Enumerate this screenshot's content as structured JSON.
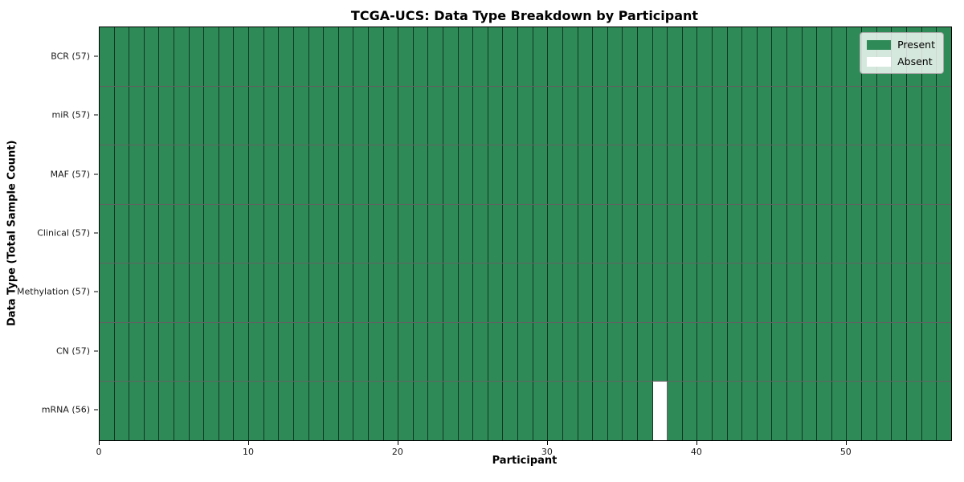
{
  "chart_data": {
    "type": "heatmap",
    "title": "TCGA-UCS: Data Type Breakdown by Participant",
    "xlabel": "Participant",
    "ylabel": "Data Type (Total Sample Count)",
    "n_participants": 57,
    "x_ticks": [
      0,
      10,
      20,
      30,
      40,
      50
    ],
    "rows": [
      {
        "label": "BCR (57)",
        "data_type": "BCR",
        "total": 57,
        "absent_participants": []
      },
      {
        "label": "miR (57)",
        "data_type": "miR",
        "total": 57,
        "absent_participants": []
      },
      {
        "label": "MAF (57)",
        "data_type": "MAF",
        "total": 57,
        "absent_participants": []
      },
      {
        "label": "Clinical (57)",
        "data_type": "Clinical",
        "total": 57,
        "absent_participants": []
      },
      {
        "label": "Methylation (57)",
        "data_type": "Methylation",
        "total": 57,
        "absent_participants": []
      },
      {
        "label": "CN (57)",
        "data_type": "CN",
        "total": 57,
        "absent_participants": []
      },
      {
        "label": "mRNA (56)",
        "data_type": "mRNA",
        "total": 56,
        "absent_participants": [
          37
        ]
      }
    ],
    "legend": {
      "position": "upper right",
      "entries": [
        {
          "label": "Present",
          "color": "#2e8b57"
        },
        {
          "label": "Absent",
          "color": "#ffffff"
        }
      ]
    },
    "colors": {
      "present": "#2e8b57",
      "absent": "#ffffff",
      "cell_edge": "#2a2a2a",
      "spine": "#000000"
    },
    "axis_range": {
      "x": [
        0,
        57
      ]
    },
    "grid_on": true
  }
}
